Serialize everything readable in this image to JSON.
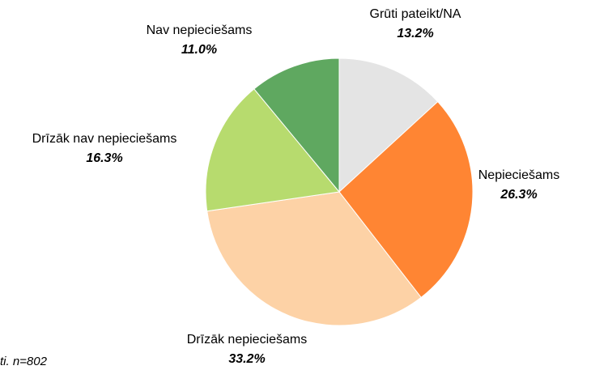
{
  "chart_data": {
    "type": "pie",
    "categories": [
      "Grūti pateikt/NA",
      "Nepieciešams",
      "Drīzāk nepieciešams",
      "Drīzāk nav nepieciešams",
      "Nav nepieciešams"
    ],
    "values": [
      13.2,
      26.3,
      33.2,
      16.3,
      11.0
    ],
    "value_labels": [
      "13.2%",
      "26.3%",
      "33.2%",
      "16.3%",
      "11.0%"
    ],
    "colors": [
      "#e4e4e4",
      "#ff8533",
      "#fdd2a6",
      "#b7db6e",
      "#5fa860"
    ],
    "footnote": "ti. n=802"
  }
}
